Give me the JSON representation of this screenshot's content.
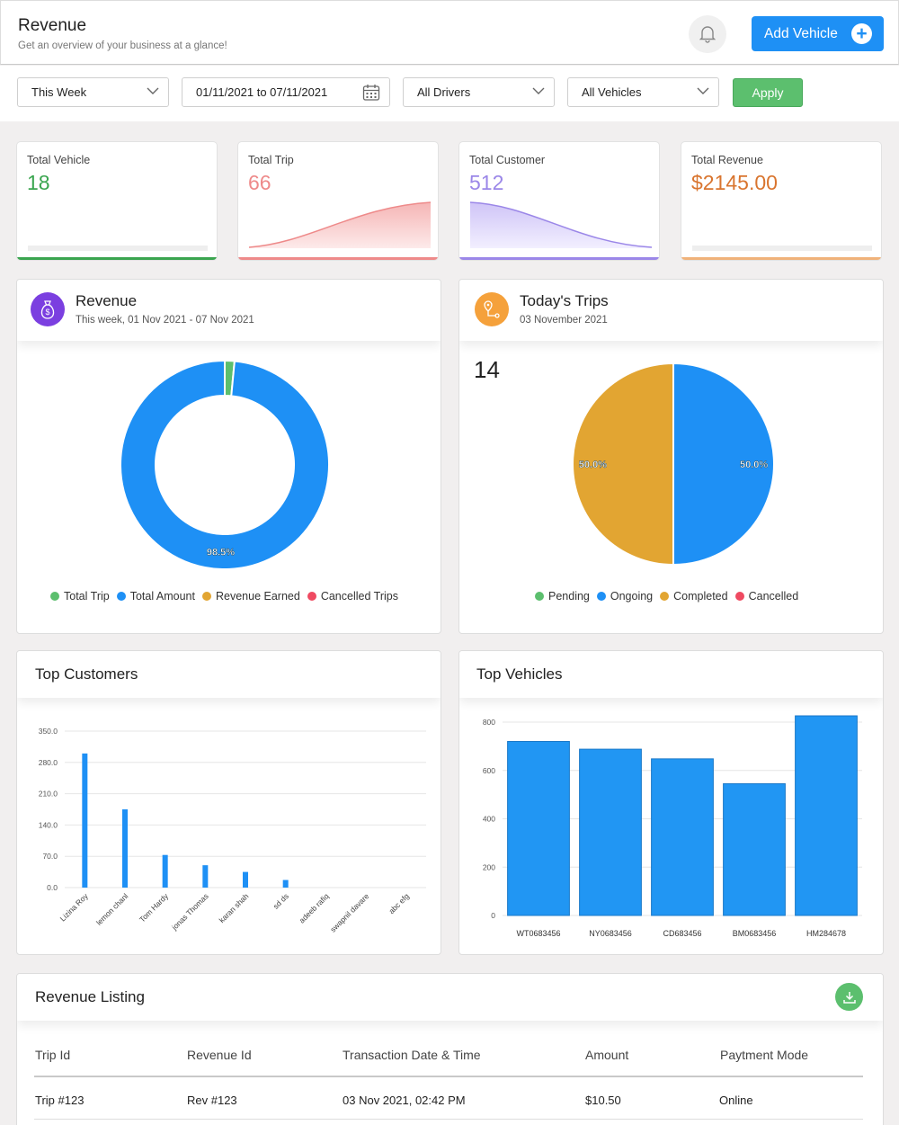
{
  "header": {
    "title": "Revenue",
    "subtitle": "Get an overview of your business at a glance!",
    "add_button": "Add Vehicle"
  },
  "filters": {
    "period": "This Week",
    "date_range": "01/11/2021 to 07/11/2021",
    "drivers": "All Drivers",
    "vehicles": "All Vehicles",
    "apply": "Apply"
  },
  "stats": [
    {
      "label": "Total Vehicle",
      "value": "18",
      "color": "#3aa54f"
    },
    {
      "label": "Total Trip",
      "value": "66",
      "color": "#ee8a8a"
    },
    {
      "label": "Total Customer",
      "value": "512",
      "color": "#9b87e8"
    },
    {
      "label": "Total Revenue",
      "value": "$2145.00",
      "color": "#d9752f"
    }
  ],
  "revenue_card": {
    "title": "Revenue",
    "subtitle": "This week, 01 Nov 2021 - 07 Nov 2021",
    "legend": [
      "Total Trip",
      "Total Amount",
      "Revenue Earned",
      "Cancelled Trips"
    ]
  },
  "trips_card": {
    "title": "Today's Trips",
    "subtitle": "03 November 2021",
    "count": "14",
    "legend": [
      "Pending",
      "Ongoing",
      "Completed",
      "Cancelled"
    ]
  },
  "customers_card": {
    "title": "Top Customers"
  },
  "vehicles_card": {
    "title": "Top Vehicles"
  },
  "listing": {
    "title": "Revenue Listing",
    "columns": [
      "Trip Id",
      "Revenue Id",
      "Transaction Date & Time",
      "Amount",
      "Paytment Mode"
    ],
    "rows": [
      {
        "trip": "Trip #123",
        "revenue": "Rev #123",
        "date": "03 Nov 2021, 02:42 PM",
        "amount": "$10.50",
        "mode": "Online"
      }
    ]
  },
  "colors": {
    "blue": "#1e90f5",
    "green": "#5cbf6e",
    "orange": "#e2a532",
    "red": "#ef4a61",
    "purple": "#7b3fe0"
  },
  "icons": {
    "bell": "bell-icon",
    "plus": "plus-circle-icon",
    "calendar": "calendar-icon",
    "download": "download-icon",
    "money": "money-bag-icon",
    "location": "location-pins-icon"
  },
  "chart_data": [
    {
      "type": "pie",
      "title": "Revenue",
      "categories": [
        "Total Trip",
        "Total Amount",
        "Revenue Earned",
        "Cancelled Trips"
      ],
      "values": [
        1.5,
        98.5,
        0,
        0
      ],
      "data_labels": [
        "",
        "98.5%",
        "",
        ""
      ],
      "donut": true,
      "legend_position": "bottom"
    },
    {
      "type": "pie",
      "title": "Today's Trips",
      "categories": [
        "Pending",
        "Ongoing",
        "Completed",
        "Cancelled"
      ],
      "values": [
        0,
        50.0,
        50.0,
        0
      ],
      "data_labels": [
        "",
        "50.0%",
        "50.0%",
        ""
      ],
      "legend_position": "bottom"
    },
    {
      "type": "bar",
      "title": "Top Customers",
      "categories": [
        "Lizina Roy",
        "lemon chanl",
        "Tom Hardy",
        "jonas Thomas",
        "karan shah",
        "sd ds",
        "adeeb rafiq",
        "swapnil davare",
        "abc efg"
      ],
      "values": [
        300,
        175,
        73,
        50,
        35,
        17,
        0,
        0,
        0
      ],
      "ylim": [
        0,
        350
      ],
      "yticks": [
        "0.0",
        "70.0",
        "140.0",
        "210.0",
        "280.0",
        "350.0"
      ],
      "grid": true
    },
    {
      "type": "bar",
      "title": "Top Vehicles",
      "categories": [
        "WT0683456",
        "NY0683456",
        "CD683456",
        "BM0683456",
        "HM284678"
      ],
      "values": [
        720,
        688,
        648,
        545,
        826
      ],
      "ylim": [
        0,
        800
      ],
      "yticks": [
        "0",
        "200",
        "400",
        "600",
        "800"
      ],
      "grid": true
    }
  ]
}
